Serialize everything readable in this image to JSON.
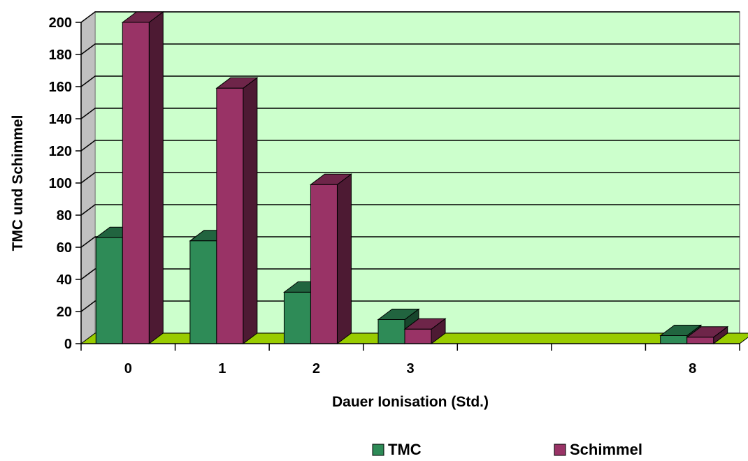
{
  "chart_data": {
    "type": "bar",
    "title": "",
    "xlabel": "Dauer Ionisation (Std.)",
    "ylabel": "TMC und Schimmel",
    "categories": [
      "0",
      "1",
      "2",
      "3",
      "",
      "",
      "8"
    ],
    "series": [
      {
        "name": "TMC",
        "values": [
          66,
          64,
          32,
          15,
          null,
          null,
          5
        ]
      },
      {
        "name": "Schimmel",
        "values": [
          200,
          159,
          99,
          9,
          null,
          null,
          4
        ]
      }
    ],
    "ylim": [
      0,
      200
    ],
    "yticks": [
      0,
      20,
      40,
      60,
      80,
      100,
      120,
      140,
      160,
      180,
      200
    ],
    "grid": true,
    "legend_position": "bottom",
    "colors": {
      "TMC": "#2e8b57",
      "Schimmel": "#993366",
      "plot_background": "#ccffcc",
      "floor": "#99cc00"
    }
  }
}
